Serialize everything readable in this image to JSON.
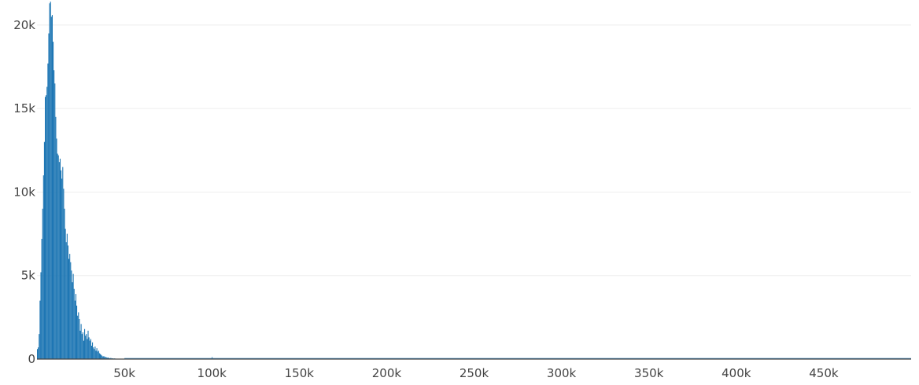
{
  "chart_data": {
    "type": "bar",
    "title": "",
    "xlabel": "",
    "ylabel": "",
    "xlim": [
      0,
      500000
    ],
    "ylim": [
      0,
      21500
    ],
    "grid": {
      "horizontal": true,
      "vertical": false
    },
    "colors": {
      "bar": "#1f77b4",
      "grid": "#eeeeee",
      "axis_text": "#444444",
      "zero_line": "#444444"
    },
    "x_ticks": [
      {
        "value": 50000,
        "label": "50k"
      },
      {
        "value": 100000,
        "label": "100k"
      },
      {
        "value": 150000,
        "label": "150k"
      },
      {
        "value": 200000,
        "label": "200k"
      },
      {
        "value": 250000,
        "label": "250k"
      },
      {
        "value": 300000,
        "label": "300k"
      },
      {
        "value": 350000,
        "label": "350k"
      },
      {
        "value": 400000,
        "label": "400k"
      },
      {
        "value": 450000,
        "label": "450k"
      }
    ],
    "y_ticks": [
      {
        "value": 0,
        "label": "0"
      },
      {
        "value": 5000,
        "label": "5k"
      },
      {
        "value": 10000,
        "label": "10k"
      },
      {
        "value": 15000,
        "label": "15k"
      },
      {
        "value": 20000,
        "label": "20k"
      }
    ],
    "bin_width": 500,
    "bins": [
      [
        0,
        600
      ],
      [
        500,
        700
      ],
      [
        1000,
        1500
      ],
      [
        1500,
        3500
      ],
      [
        2000,
        5200
      ],
      [
        2500,
        7200
      ],
      [
        3000,
        9000
      ],
      [
        3500,
        11000
      ],
      [
        4000,
        13000
      ],
      [
        4500,
        15700
      ],
      [
        5000,
        15800
      ],
      [
        5500,
        16300
      ],
      [
        6000,
        17700
      ],
      [
        6500,
        19500
      ],
      [
        7000,
        21300
      ],
      [
        7500,
        21400
      ],
      [
        8000,
        20500
      ],
      [
        8500,
        20600
      ],
      [
        9000,
        19000
      ],
      [
        9500,
        17300
      ],
      [
        10000,
        16500
      ],
      [
        10500,
        14500
      ],
      [
        11000,
        13200
      ],
      [
        11500,
        12300
      ],
      [
        12000,
        12200
      ],
      [
        12500,
        11800
      ],
      [
        13000,
        12000
      ],
      [
        13500,
        11300
      ],
      [
        14000,
        10800
      ],
      [
        14500,
        11500
      ],
      [
        15000,
        10200
      ],
      [
        15500,
        9000
      ],
      [
        16000,
        7800
      ],
      [
        16500,
        7000
      ],
      [
        17000,
        7500
      ],
      [
        17500,
        6800
      ],
      [
        18000,
        6000
      ],
      [
        18500,
        6300
      ],
      [
        19000,
        5800
      ],
      [
        19500,
        5300
      ],
      [
        20000,
        4600
      ],
      [
        20500,
        5100
      ],
      [
        21000,
        4200
      ],
      [
        21500,
        3500
      ],
      [
        22000,
        3900
      ],
      [
        22500,
        3200
      ],
      [
        23000,
        2600
      ],
      [
        23500,
        2800
      ],
      [
        24000,
        2400
      ],
      [
        24500,
        1700
      ],
      [
        25000,
        2100
      ],
      [
        25500,
        1500
      ],
      [
        26000,
        1600
      ],
      [
        26500,
        1100
      ],
      [
        27000,
        1800
      ],
      [
        27500,
        1400
      ],
      [
        28000,
        1500
      ],
      [
        28500,
        1200
      ],
      [
        29000,
        1700
      ],
      [
        29500,
        1300
      ],
      [
        30000,
        1100
      ],
      [
        30500,
        1200
      ],
      [
        31000,
        800
      ],
      [
        31500,
        1000
      ],
      [
        32000,
        700
      ],
      [
        32500,
        600
      ],
      [
        33000,
        750
      ],
      [
        33500,
        500
      ],
      [
        34000,
        650
      ],
      [
        34500,
        450
      ],
      [
        35000,
        500
      ],
      [
        35500,
        350
      ],
      [
        36000,
        300
      ],
      [
        36500,
        250
      ],
      [
        37000,
        200
      ],
      [
        37500,
        150
      ],
      [
        38000,
        180
      ],
      [
        38500,
        120
      ],
      [
        39000,
        130
      ],
      [
        39500,
        100
      ],
      [
        40000,
        80
      ],
      [
        40500,
        90
      ],
      [
        41000,
        60
      ],
      [
        41500,
        50
      ],
      [
        42000,
        70
      ],
      [
        42500,
        40
      ],
      [
        43000,
        50
      ],
      [
        43500,
        30
      ],
      [
        44000,
        40
      ],
      [
        44500,
        30
      ],
      [
        45000,
        25
      ],
      [
        45500,
        20
      ],
      [
        46000,
        20
      ],
      [
        46500,
        15
      ],
      [
        47000,
        15
      ],
      [
        47500,
        10
      ],
      [
        48000,
        10
      ],
      [
        48500,
        10
      ],
      [
        49000,
        8
      ],
      [
        49500,
        8
      ],
      [
        50000,
        6
      ]
    ],
    "tail_bins": [
      [
        50,
        6
      ],
      [
        55,
        10
      ],
      [
        60,
        5
      ],
      [
        65,
        8
      ],
      [
        75,
        6
      ],
      [
        85,
        5
      ],
      [
        100,
        120
      ],
      [
        110,
        4
      ],
      [
        130,
        5
      ],
      [
        150,
        4
      ],
      [
        170,
        5
      ],
      [
        200,
        3
      ],
      [
        230,
        4
      ],
      [
        260,
        3
      ],
      [
        300,
        3
      ],
      [
        340,
        3
      ],
      [
        380,
        3
      ],
      [
        420,
        3
      ],
      [
        460,
        3
      ],
      [
        490,
        3
      ]
    ]
  }
}
